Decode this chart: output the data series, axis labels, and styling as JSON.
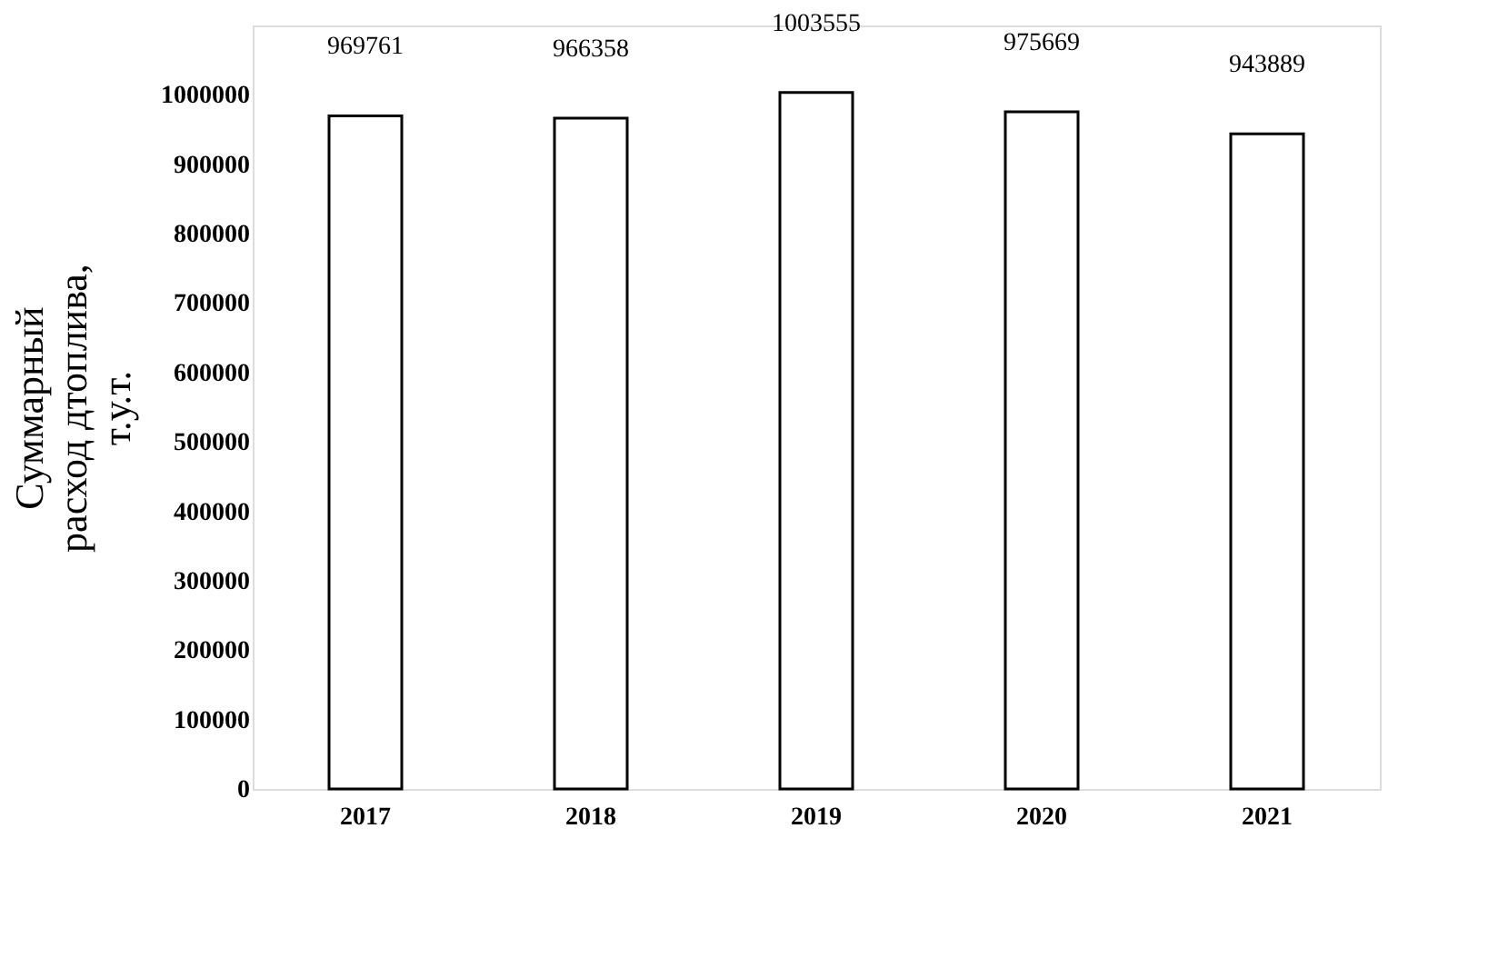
{
  "chart_data": {
    "type": "bar",
    "ylabel": "Суммарный\nрасход дтоплива,\nт.у.т.",
    "categories": [
      "2017",
      "2018",
      "2019",
      "2020",
      "2021"
    ],
    "values": [
      969761,
      966358,
      1003555,
      975669,
      943889
    ],
    "color": "#ffffff",
    "ylim": [
      0,
      1100000
    ],
    "yticks": [
      0,
      100000,
      200000,
      300000,
      400000,
      500000,
      600000,
      700000,
      800000,
      900000,
      1000000
    ],
    "grid": false,
    "data_labels": true
  }
}
